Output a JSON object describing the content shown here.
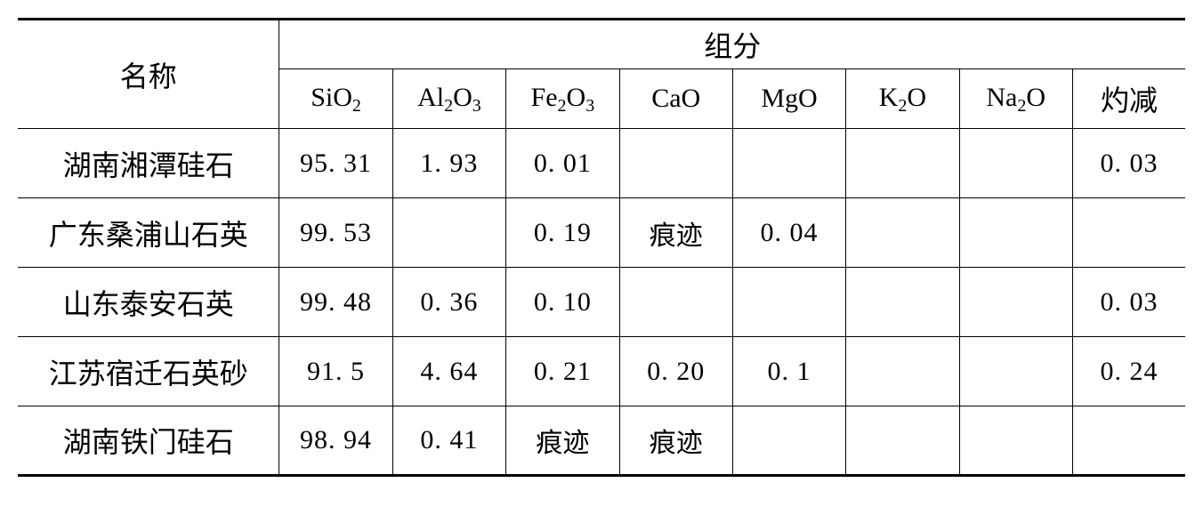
{
  "table": {
    "header": {
      "name_label": "名称",
      "group_label": "组分",
      "columns": [
        "SiO₂",
        "Al₂O₃",
        "Fe₂O₃",
        "CaO",
        "MgO",
        "K₂O",
        "Na₂O",
        "灼减"
      ],
      "formulas": [
        {
          "base": "SiO",
          "sub": "2"
        },
        {
          "base": "Al",
          "sub": "2",
          "base2": "O",
          "sub2": "3"
        },
        {
          "base": "Fe",
          "sub": "2",
          "base2": "O",
          "sub2": "3"
        },
        {
          "base": "CaO",
          "sub": ""
        },
        {
          "base": "MgO",
          "sub": ""
        },
        {
          "base": "K",
          "sub": "2",
          "base2": "O",
          "sub2": ""
        },
        {
          "base": "Na",
          "sub": "2",
          "base2": "O",
          "sub2": ""
        },
        {
          "cn": "灼减"
        }
      ]
    },
    "rows": [
      {
        "name": "湖南湘潭硅石",
        "v": [
          "95. 31",
          "1. 93",
          "0. 01",
          "",
          "",
          "",
          "",
          "0. 03"
        ]
      },
      {
        "name": "广东桑浦山石英",
        "v": [
          "99. 53",
          "",
          "0. 19",
          "痕迹",
          "0. 04",
          "",
          "",
          ""
        ]
      },
      {
        "name": "山东泰安石英",
        "v": [
          "99. 48",
          "0. 36",
          "0. 10",
          "",
          "",
          "",
          "",
          "0. 03"
        ]
      },
      {
        "name": "江苏宿迁石英砂",
        "v": [
          "91. 5",
          "4. 64",
          "0. 21",
          "0. 20",
          "0. 1",
          "",
          "",
          "0. 24"
        ]
      },
      {
        "name": "湖南铁门硅石",
        "v": [
          "98. 94",
          "0. 41",
          "痕迹",
          "痕迹",
          "",
          "",
          "",
          ""
        ]
      }
    ],
    "style": {
      "font_size_cn": 32,
      "font_size_val": 30,
      "border_thick": 3,
      "border_thin": 1.5,
      "background": "#ffffff",
      "text_color": "#000000",
      "col_widths": {
        "name": 296,
        "comp": 127
      },
      "row_heights": {
        "header1": 54,
        "header2": 66,
        "data": 78
      }
    }
  }
}
